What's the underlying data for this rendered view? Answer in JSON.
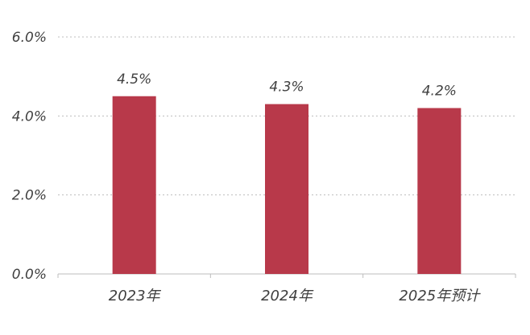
{
  "chart_data": {
    "type": "bar",
    "categories": [
      "2023年",
      "2024年",
      "2025年预计"
    ],
    "values": [
      4.5,
      4.3,
      4.2
    ],
    "value_labels": [
      "4.5%",
      "4.3%",
      "4.2%"
    ],
    "y_ticks": [
      0,
      2,
      4,
      6
    ],
    "y_tick_labels": [
      "0.0%",
      "2.0%",
      "4.0%",
      "6.0%"
    ],
    "ylim": [
      0,
      6
    ],
    "grid": true,
    "title": "",
    "xlabel": "",
    "ylabel": "",
    "bar_color": "#b8394a"
  }
}
